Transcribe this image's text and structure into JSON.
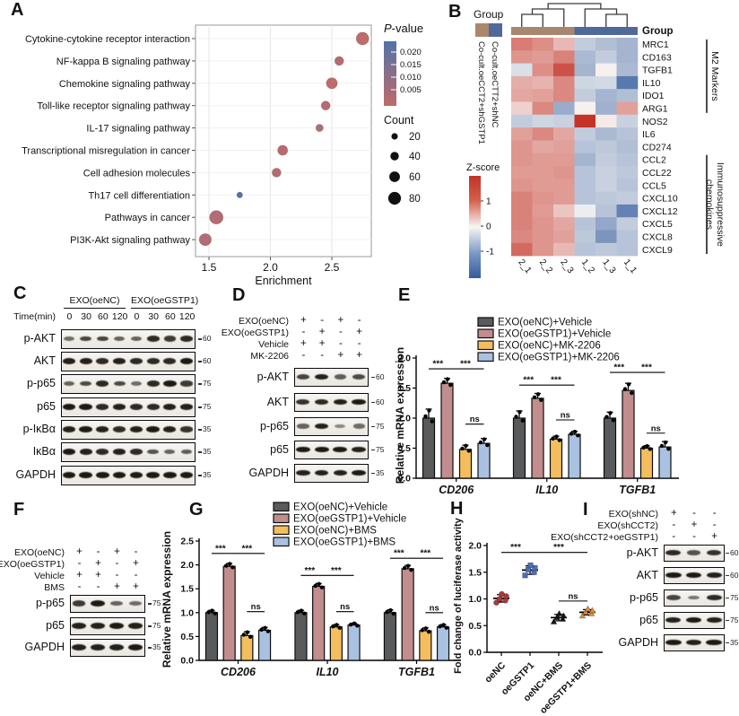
{
  "panels": {
    "A": {
      "label": "A"
    },
    "B": {
      "label": "B"
    },
    "C": {
      "label": "C"
    },
    "D": {
      "label": "D"
    },
    "E": {
      "label": "E"
    },
    "F": {
      "label": "F"
    },
    "G": {
      "label": "G"
    },
    "H": {
      "label": "H"
    },
    "I": {
      "label": "I"
    }
  },
  "colors": {
    "bar_gray": "#595A5C",
    "bar_rose": "#C28D8D",
    "bar_yellow": "#F4BE5E",
    "bar_blue": "#AAC2E1",
    "dot_rose": "#BE6B6B",
    "dot_blue": "#5273A8",
    "anno_brown": "#A9876F",
    "anno_blue": "#50699B",
    "heat_red": "#C43326",
    "heat_blue": "#3A62A0",
    "scatter_red": "#A93B3B",
    "scatter_blue": "#4D6FB4",
    "scatter_black": "#141414",
    "scatter_orange": "#D98F44"
  },
  "chart_data": {
    "A_dotplot": {
      "type": "scatter",
      "xlabel": "Enrichment",
      "xlim": [
        1.36,
        2.9
      ],
      "xticks": [
        1.5,
        2.0,
        2.5
      ],
      "xtick_labels": [
        "1.5",
        "2.0",
        "2.5"
      ],
      "pathways": [
        "Cytokine-cytokine receptor interaction",
        "NF-kappa B signaling pathway",
        "Chemokine signaling pathway",
        "Toll-like receptor signaling pathway",
        "IL-17 signaling pathway",
        "Transcriptional misregulation in cancer",
        "Cell adhesion molecules",
        "Th17 cell differentiation",
        "Pathways in cancer",
        "PI3K-Akt signaling pathway"
      ],
      "enrichment": [
        2.75,
        2.56,
        2.5,
        2.45,
        2.4,
        2.1,
        2.05,
        1.75,
        1.56,
        1.47
      ],
      "count": [
        80,
        45,
        65,
        45,
        30,
        55,
        45,
        15,
        88,
        75
      ],
      "pvalue": [
        0.002,
        0.003,
        0.002,
        0.003,
        0.004,
        0.003,
        0.004,
        0.02,
        0.004,
        0.004
      ],
      "legend_pvalue": {
        "title": "P-value",
        "tick_labels": [
          "0.020",
          "0.015",
          "0.010",
          "0.005"
        ]
      },
      "legend_count": {
        "title": "Count",
        "sizes": [
          20,
          40,
          60,
          80
        ]
      }
    },
    "B_heatmap": {
      "type": "heatmap",
      "corner_label": "Group",
      "columns": [
        "2_1",
        "2_2",
        "2_3",
        "1_2",
        "1_3",
        "1_1"
      ],
      "column_group_index": [
        0,
        0,
        0,
        1,
        1,
        1
      ],
      "group_legend": {
        "title": "Group",
        "items": [
          {
            "label": "Co-cult.oeCCT2+shGSTP1",
            "color_key": "anno_brown"
          },
          {
            "label": "Co-cult.oeCTT2+shNC",
            "color_key": "anno_blue"
          }
        ]
      },
      "zscore_legend": {
        "title": "Z-score",
        "tick_labels": [
          "1",
          "0",
          "-1"
        ]
      },
      "rows": [
        "MRC1",
        "CD163",
        "TGFB1",
        "IL10",
        "IDO1",
        "ARG1",
        "NOS2",
        "IL6",
        "CD274",
        "CCL2",
        "CCL22",
        "CCL5",
        "CXCL10",
        "CXCL12",
        "CXCL5",
        "CXCL8",
        "CXCL9"
      ],
      "values": [
        [
          1.0,
          0.85,
          0.5,
          -0.45,
          -0.6,
          -0.7
        ],
        [
          0.8,
          0.75,
          0.95,
          -0.65,
          -0.45,
          -0.7
        ],
        [
          -0.25,
          0.85,
          1.35,
          -0.7,
          0.05,
          -0.65
        ],
        [
          0.6,
          0.55,
          0.9,
          -0.35,
          -0.3,
          -1.35
        ],
        [
          0.65,
          0.7,
          0.9,
          -0.45,
          -0.7,
          -0.6
        ],
        [
          0.3,
          0.9,
          -0.8,
          0.05,
          -0.75,
          0.7
        ],
        [
          -0.45,
          -0.35,
          -0.4,
          1.8,
          0.1,
          -0.4
        ],
        [
          0.7,
          0.9,
          0.65,
          -0.45,
          -0.65,
          -0.55
        ],
        [
          0.8,
          0.65,
          0.7,
          -0.55,
          -0.5,
          -0.6
        ],
        [
          0.8,
          0.75,
          0.75,
          -0.7,
          -0.45,
          -0.55
        ],
        [
          0.75,
          0.75,
          0.8,
          -0.55,
          -0.4,
          -0.5
        ],
        [
          0.8,
          0.75,
          0.75,
          -0.55,
          -0.4,
          -0.55
        ],
        [
          0.95,
          0.8,
          0.75,
          -0.55,
          -0.5,
          -0.45
        ],
        [
          0.95,
          0.75,
          0.4,
          -0.1,
          -0.55,
          -1.25
        ],
        [
          0.95,
          0.8,
          0.65,
          -0.55,
          -0.85,
          -0.45
        ],
        [
          0.9,
          0.8,
          0.7,
          -0.5,
          -1.05,
          -0.55
        ],
        [
          1.15,
          0.8,
          0.5,
          -0.55,
          -0.5,
          -0.55
        ]
      ],
      "row_groups": [
        {
          "lines": [
            "M2 Markers"
          ],
          "start": 0,
          "end": 5
        },
        {
          "lines": [
            "Immunosuppressive",
            "chemokines"
          ],
          "start": 9,
          "end": 16
        }
      ]
    },
    "E_bar": {
      "type": "bar",
      "ylabel": "Relative mRNA expression",
      "ylim": [
        0,
        2.0
      ],
      "ytick_labels": [
        "0.0",
        "0.5",
        "1.0",
        "1.5",
        "2.0"
      ],
      "categories": [
        "CD206",
        "IL10",
        "TGFB1"
      ],
      "series": [
        {
          "name": "EXO(oeNC)+Vehicle",
          "color_key": "bar_gray",
          "values": [
            1.0,
            1.0,
            1.0
          ],
          "errors": [
            0.15,
            0.12,
            0.1
          ]
        },
        {
          "name": "EXO(oeGSTP1)+Vehicle",
          "color_key": "bar_rose",
          "values": [
            1.58,
            1.33,
            1.46
          ],
          "errors": [
            0.08,
            0.08,
            0.12
          ]
        },
        {
          "name": "EXO(oeNC)+MK-2206",
          "color_key": "bar_yellow",
          "values": [
            0.48,
            0.65,
            0.5
          ],
          "errors": [
            0.07,
            0.05,
            0.04
          ]
        },
        {
          "name": "EXO(oeGSTP1)+MK-2206",
          "color_key": "bar_blue",
          "values": [
            0.58,
            0.73,
            0.52
          ],
          "errors": [
            0.08,
            0.05,
            0.09
          ]
        }
      ],
      "significance": [
        {
          "category": 0,
          "from": 0,
          "to": 1,
          "label": "***",
          "y": 1.82
        },
        {
          "category": 0,
          "from": 1,
          "to": 3,
          "label": "***",
          "y": 1.82
        },
        {
          "category": 0,
          "from": 2,
          "to": 3,
          "label": "ns",
          "y": 0.9
        },
        {
          "category": 1,
          "from": 0,
          "to": 1,
          "label": "***",
          "y": 1.55
        },
        {
          "category": 1,
          "from": 1,
          "to": 3,
          "label": "***",
          "y": 1.55
        },
        {
          "category": 1,
          "from": 2,
          "to": 3,
          "label": "ns",
          "y": 0.97
        },
        {
          "category": 2,
          "from": 0,
          "to": 1,
          "label": "***",
          "y": 1.76
        },
        {
          "category": 2,
          "from": 1,
          "to": 3,
          "label": "***",
          "y": 1.76
        },
        {
          "category": 2,
          "from": 2,
          "to": 3,
          "label": "ns",
          "y": 0.75
        }
      ]
    },
    "G_bar": {
      "type": "bar",
      "ylabel": "Relative mRNA expression",
      "ylim": [
        0,
        2.5
      ],
      "ytick_labels": [
        "0.0",
        "0.5",
        "1.0",
        "1.5",
        "2.0",
        "2.5"
      ],
      "categories": [
        "CD206",
        "IL10",
        "TGFB1"
      ],
      "series": [
        {
          "name": "EXO(oeNC)+Vehicle",
          "color_key": "bar_gray",
          "values": [
            1.0,
            1.0,
            1.0
          ],
          "errors": [
            0.05,
            0.05,
            0.06
          ]
        },
        {
          "name": "EXO(oeGSTP1)+Vehicle",
          "color_key": "bar_rose",
          "values": [
            1.97,
            1.55,
            1.92
          ],
          "errors": [
            0.06,
            0.06,
            0.07
          ]
        },
        {
          "name": "EXO(oeNC)+BMS",
          "color_key": "bar_yellow",
          "values": [
            0.52,
            0.7,
            0.62
          ],
          "errors": [
            0.08,
            0.05,
            0.06
          ]
        },
        {
          "name": "EXO(oeGSTP1)+BMS",
          "color_key": "bar_blue",
          "values": [
            0.63,
            0.74,
            0.7
          ],
          "errors": [
            0.06,
            0.04,
            0.05
          ]
        }
      ],
      "significance": [
        {
          "category": 0,
          "from": 0,
          "to": 1,
          "label": "***",
          "y": 2.24
        },
        {
          "category": 0,
          "from": 1,
          "to": 3,
          "label": "***",
          "y": 2.24
        },
        {
          "category": 0,
          "from": 2,
          "to": 3,
          "label": "ns",
          "y": 1.02
        },
        {
          "category": 1,
          "from": 0,
          "to": 1,
          "label": "***",
          "y": 1.78
        },
        {
          "category": 1,
          "from": 1,
          "to": 3,
          "label": "***",
          "y": 1.78
        },
        {
          "category": 1,
          "from": 2,
          "to": 3,
          "label": "ns",
          "y": 1.02
        },
        {
          "category": 2,
          "from": 0,
          "to": 1,
          "label": "***",
          "y": 2.14
        },
        {
          "category": 2,
          "from": 1,
          "to": 3,
          "label": "***",
          "y": 2.14
        },
        {
          "category": 2,
          "from": 2,
          "to": 3,
          "label": "ns",
          "y": 1.0
        }
      ]
    },
    "H_scatter": {
      "type": "scatter",
      "ylabel": "Fold change of luciferase activity",
      "ylim": [
        0,
        2.0
      ],
      "ytick_labels": [
        "0.0",
        "0.5",
        "1.0",
        "1.5",
        "2.0"
      ],
      "categories": [
        "oeNC",
        "oeGSTP1",
        "oeNC+BMS",
        "oeGSTP1+BMS"
      ],
      "groups": [
        {
          "name": "oeNC",
          "marker": "circle",
          "color_key": "scatter_red",
          "points": [
            0.93,
            0.97,
            1.0,
            1.05,
            1.09
          ],
          "mean": 1.01,
          "error": 0.07
        },
        {
          "name": "oeGSTP1",
          "marker": "square",
          "color_key": "scatter_blue",
          "points": [
            1.44,
            1.5,
            1.55,
            1.58,
            1.63
          ],
          "mean": 1.54,
          "error": 0.08
        },
        {
          "name": "oeNC+BMS",
          "marker": "triangle",
          "color_key": "scatter_black",
          "points": [
            0.57,
            0.62,
            0.65,
            0.68,
            0.72
          ],
          "mean": 0.65,
          "error": 0.06
        },
        {
          "name": "oeGSTP1+BMS",
          "marker": "triangle",
          "color_key": "scatter_orange",
          "points": [
            0.68,
            0.72,
            0.75,
            0.78,
            0.81
          ],
          "mean": 0.75,
          "error": 0.05
        }
      ],
      "significance": [
        {
          "from": 0,
          "to": 1,
          "label": "***",
          "y": 1.87
        },
        {
          "from": 1,
          "to": 3,
          "label": "***",
          "y": 1.87
        },
        {
          "from": 2,
          "to": 3,
          "label": "ns",
          "y": 0.96
        }
      ]
    }
  },
  "blots": {
    "C": {
      "group_headers": [
        "EXO(oeNC)",
        "EXO(oeGSTP1)"
      ],
      "time_label": "Time(min)",
      "time_points": [
        "0",
        "30",
        "60",
        "120",
        "0",
        "30",
        "60",
        "120"
      ],
      "rows": [
        {
          "name": "p-AKT",
          "mw": "60",
          "bands": [
            0.45,
            0.7,
            0.7,
            0.5,
            0.5,
            0.85,
            0.75,
            0.85
          ]
        },
        {
          "name": "AKT",
          "mw": "60",
          "bands": [
            0.9,
            0.9,
            0.85,
            0.9,
            0.85,
            0.85,
            0.85,
            0.95
          ]
        },
        {
          "name": "p-p65",
          "mw": "75",
          "bands": [
            0.5,
            0.65,
            0.85,
            0.65,
            0.45,
            0.85,
            0.95,
            0.75
          ]
        },
        {
          "name": "p65",
          "mw": "75",
          "bands": [
            0.95,
            0.95,
            0.85,
            0.9,
            0.85,
            0.85,
            0.9,
            0.9
          ]
        },
        {
          "name": "p-IκBα",
          "mw": "35",
          "bands": [
            0.9,
            0.95,
            0.9,
            0.85,
            0.9,
            0.95,
            0.9,
            0.8
          ]
        },
        {
          "name": "IκBα",
          "mw": "35",
          "bands": [
            0.95,
            0.9,
            0.85,
            0.9,
            0.85,
            0.6,
            0.5,
            0.55
          ]
        },
        {
          "name": "GAPDH",
          "mw": "35",
          "bands": [
            0.95,
            0.95,
            0.95,
            0.95,
            0.95,
            0.95,
            0.95,
            0.95
          ]
        }
      ]
    },
    "D": {
      "conditions": [
        {
          "name": "EXO(oeNC)",
          "signs": [
            "+",
            "-",
            "+",
            "-"
          ]
        },
        {
          "name": "EXO(oeGSTP1)",
          "signs": [
            "-",
            "+",
            "-",
            "+"
          ]
        },
        {
          "name": "Vehicle",
          "signs": [
            "+",
            "+",
            "-",
            "-"
          ]
        },
        {
          "name": "MK-2206",
          "signs": [
            "-",
            "-",
            "+",
            "+"
          ]
        }
      ],
      "rows": [
        {
          "name": "p-AKT",
          "mw": "60",
          "bands": [
            0.7,
            0.9,
            0.55,
            0.65
          ]
        },
        {
          "name": "AKT",
          "mw": "60",
          "bands": [
            0.8,
            0.85,
            0.9,
            0.95
          ]
        },
        {
          "name": "p-p65",
          "mw": "75",
          "bands": [
            0.5,
            0.9,
            0.3,
            0.45
          ]
        },
        {
          "name": "p65",
          "mw": "75",
          "bands": [
            0.95,
            0.95,
            0.95,
            0.9
          ]
        },
        {
          "name": "GAPDH",
          "mw": "35",
          "bands": [
            0.9,
            0.9,
            0.9,
            0.95
          ]
        }
      ]
    },
    "F": {
      "conditions": [
        {
          "name": "EXO(oeNC)",
          "signs": [
            "+",
            "-",
            "+",
            "-"
          ]
        },
        {
          "name": "EXO(oeGSTP1)",
          "signs": [
            "-",
            "+",
            "-",
            "+"
          ]
        },
        {
          "name": "Vehicle",
          "signs": [
            "+",
            "+",
            "-",
            "-"
          ]
        },
        {
          "name": "BMS",
          "signs": [
            "-",
            "-",
            "+",
            "+"
          ]
        }
      ],
      "rows": [
        {
          "name": "p-p65",
          "mw": "75",
          "bands": [
            0.75,
            0.95,
            0.5,
            0.45
          ]
        },
        {
          "name": "p65",
          "mw": "75",
          "bands": [
            0.9,
            0.9,
            0.95,
            0.9
          ]
        },
        {
          "name": "GAPDH",
          "mw": "35",
          "bands": [
            0.9,
            0.9,
            0.9,
            0.95
          ]
        }
      ]
    },
    "I": {
      "conditions": [
        {
          "name": "EXO(shNC)",
          "signs": [
            "+",
            "-",
            "-"
          ]
        },
        {
          "name": "EXO(shCCT2)",
          "signs": [
            "-",
            "+",
            "-"
          ]
        },
        {
          "name": "EXO(shCCT2+oeGSTP1)",
          "signs": [
            "-",
            "-",
            "+"
          ]
        }
      ],
      "rows": [
        {
          "name": "p-AKT",
          "mw": "60",
          "bands": [
            0.85,
            0.6,
            0.8
          ]
        },
        {
          "name": "AKT",
          "mw": "60",
          "bands": [
            0.95,
            0.95,
            0.9
          ]
        },
        {
          "name": "p-p65",
          "mw": "75",
          "bands": [
            0.7,
            0.4,
            0.85
          ]
        },
        {
          "name": "p65",
          "mw": "75",
          "bands": [
            0.9,
            0.95,
            0.9
          ]
        },
        {
          "name": "GAPDH",
          "mw": "35",
          "bands": [
            0.95,
            0.9,
            0.95
          ]
        }
      ]
    }
  }
}
